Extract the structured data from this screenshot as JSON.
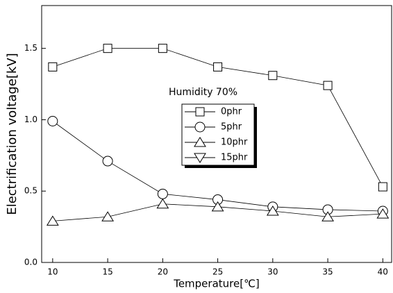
{
  "chart_data": {
    "type": "line",
    "x_label": "Temperature[℃]",
    "y_label": "Electrification voltage[kV]",
    "annotation": "Humidity 70%",
    "x": [
      10,
      15,
      20,
      25,
      30,
      35,
      40
    ],
    "series": [
      {
        "name": "0phr",
        "color": "#000000",
        "marker": "square",
        "values": [
          1.37,
          1.5,
          1.5,
          1.37,
          1.31,
          1.24,
          0.53
        ]
      },
      {
        "name": "5phr",
        "color": "#000000",
        "marker": "circle",
        "values": [
          0.99,
          0.71,
          0.48,
          0.44,
          0.39,
          0.37,
          0.36
        ]
      },
      {
        "name": "10phr",
        "color": "#000000",
        "marker": "triangle-up",
        "values": [
          0.29,
          0.32,
          0.41,
          0.39,
          0.36,
          0.32,
          0.34
        ]
      },
      {
        "name": "15phr",
        "color": "#000000",
        "marker": "triangle-down",
        "values": [
          null,
          null,
          null,
          null,
          null,
          null,
          null
        ]
      }
    ],
    "xlim": [
      9,
      40.8
    ],
    "ylim": [
      0,
      1.8
    ],
    "xticks": [
      10,
      15,
      20,
      25,
      30,
      35,
      40
    ],
    "yticks": [
      {
        "value": 0,
        "label": "0.0"
      },
      0.5,
      {
        "value": 1,
        "label": "1.0"
      },
      1.5
    ],
    "grid": false
  }
}
